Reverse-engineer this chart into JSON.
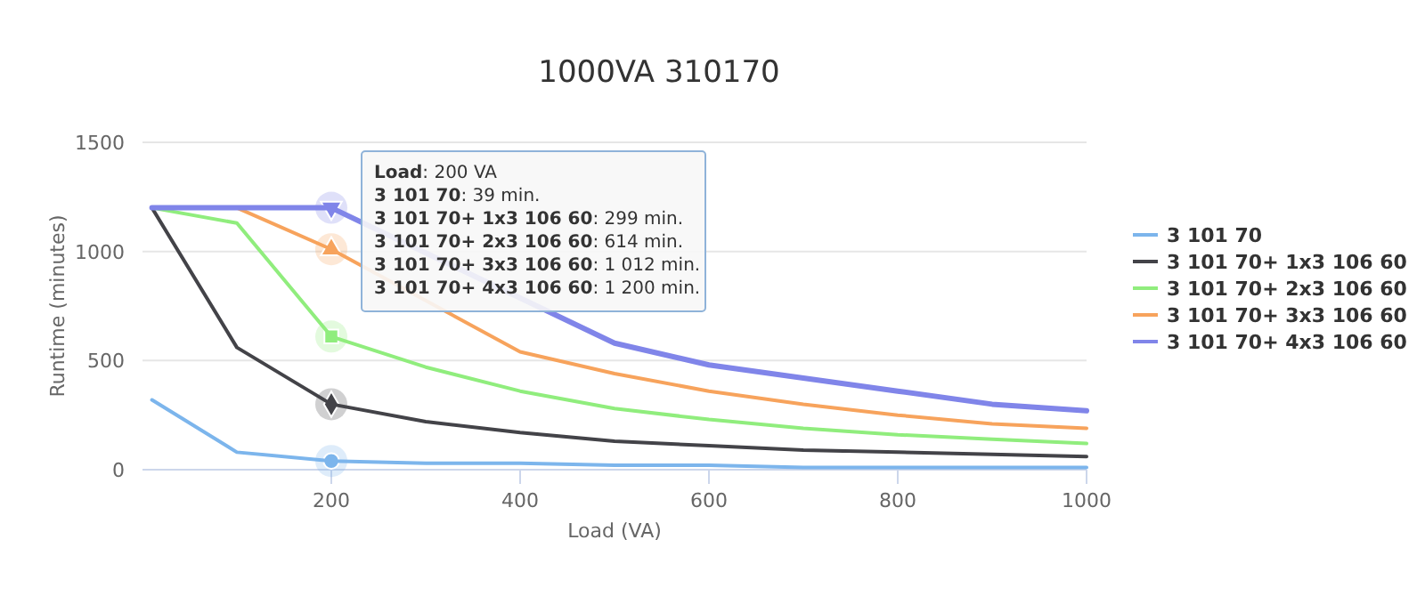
{
  "chart_data": {
    "type": "line",
    "title": "1000VA 310170",
    "xlabel": "Load (VA)",
    "ylabel": "Runtime (minutes)",
    "x": [
      10,
      100,
      200,
      300,
      400,
      500,
      600,
      700,
      800,
      900,
      1000
    ],
    "xlim": [
      0,
      1000
    ],
    "xticks": [
      200,
      400,
      600,
      800,
      1000
    ],
    "ylim": [
      0,
      1500
    ],
    "yticks": [
      0,
      500,
      1000,
      1500
    ],
    "grid": "y",
    "legend": "right",
    "marker": "none",
    "line_style": "solid",
    "series": [
      {
        "name": "3 101 70",
        "color": "#7cb5ec",
        "values": [
          320,
          80,
          40,
          30,
          30,
          20,
          20,
          10,
          10,
          10,
          10
        ]
      },
      {
        "name": "3 101 70+ 1x3 106 60",
        "color": "#434348",
        "values": [
          1200,
          560,
          300,
          220,
          170,
          130,
          110,
          90,
          80,
          70,
          60
        ]
      },
      {
        "name": "3 101 70+ 2x3 106 60",
        "color": "#90ed7d",
        "values": [
          1200,
          1130,
          610,
          470,
          360,
          280,
          230,
          190,
          160,
          140,
          120
        ]
      },
      {
        "name": "3 101 70+ 3x3 106 60",
        "color": "#f7a35c",
        "values": [
          1200,
          1200,
          1010,
          null,
          540,
          440,
          360,
          300,
          250,
          210,
          190
        ]
      },
      {
        "name": "3 101 70+ 4x3 106 60",
        "color": "#8085e9",
        "values": [
          1200,
          1200,
          1200,
          null,
          null,
          580,
          480,
          420,
          360,
          300,
          270
        ]
      }
    ],
    "annotations": [
      "Load: 200 VA",
      "3 101 70: 39 min.",
      "3 101 70+ 1x3 106 60: 299 min.",
      "3 101 70+ 2x3 106 60: 614 min.",
      "3 101 70+ 3x3 106 60: 1 012 min.",
      "3 101 70+ 4x3 106 60: 1 200 min."
    ]
  }
}
